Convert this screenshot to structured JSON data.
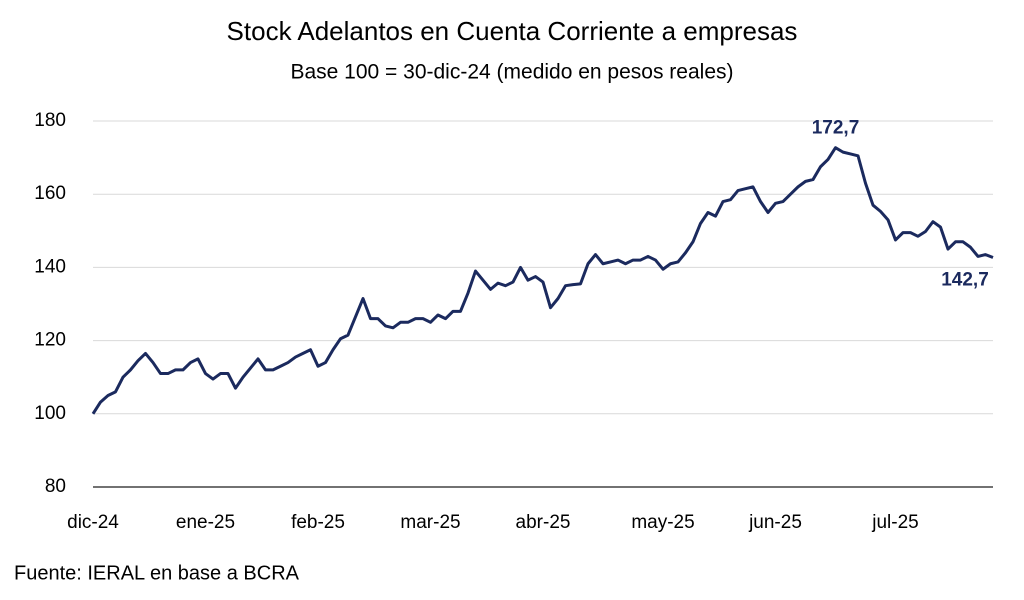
{
  "chart_data": {
    "type": "line",
    "title": "Stock Adelantos en Cuenta Corriente a empresas",
    "subtitle": "Base 100 = 30-dic-24 (medido  en pesos reales)",
    "source": "Fuente: IERAL en base a BCRA",
    "categories": [
      "dic-24",
      null,
      null,
      null,
      null,
      null,
      null,
      null,
      null,
      null,
      null,
      null,
      null,
      null,
      null,
      "ene-25",
      null,
      null,
      null,
      null,
      null,
      null,
      null,
      null,
      null,
      null,
      null,
      null,
      null,
      null,
      "feb-25",
      null,
      null,
      null,
      null,
      null,
      null,
      null,
      null,
      null,
      null,
      null,
      null,
      null,
      null,
      "mar-25",
      null,
      null,
      null,
      null,
      null,
      null,
      null,
      null,
      null,
      null,
      null,
      null,
      null,
      null,
      "abr-25",
      null,
      null,
      null,
      null,
      null,
      null,
      null,
      null,
      null,
      null,
      null,
      null,
      null,
      null,
      null,
      "may-25",
      null,
      null,
      null,
      null,
      null,
      null,
      null,
      null,
      null,
      null,
      null,
      null,
      null,
      null,
      "jun-25",
      null,
      null,
      null,
      null,
      null,
      null,
      null,
      null,
      null,
      null,
      null,
      null,
      null,
      null,
      null,
      "jul-25",
      null,
      null,
      null,
      null,
      null,
      null,
      null,
      null,
      null,
      null,
      null,
      null,
      null
    ],
    "series": [
      {
        "name": "Stock",
        "color": "#1b2a5e",
        "values": [
          100,
          103.2,
          105,
          106,
          110,
          112,
          114.5,
          116.5,
          114,
          111,
          111,
          112,
          112,
          114,
          115,
          111,
          109.5,
          111,
          111,
          107,
          110,
          112.5,
          115,
          112,
          112,
          113,
          114,
          115.5,
          116.5,
          117.5,
          113,
          114,
          117.5,
          120.5,
          121.5,
          126.5,
          131.5,
          126,
          126,
          124,
          123.5,
          125,
          125,
          126,
          126,
          125,
          127,
          126,
          128,
          128,
          133,
          139,
          136.5,
          134,
          135.7,
          135,
          136,
          140,
          136.5,
          137.5,
          136,
          129,
          131.5,
          135,
          135.3,
          135.5,
          141,
          143.5,
          141,
          141.5,
          142,
          141,
          142,
          142,
          143,
          142,
          139.5,
          141,
          141.5,
          144,
          147,
          152,
          155,
          154,
          158,
          158.5,
          161,
          161.5,
          162,
          158,
          155,
          157.5,
          158,
          160,
          162,
          163.5,
          164,
          167.5,
          169.5,
          172.7,
          171.5,
          171,
          170.5,
          163,
          157,
          155.3,
          153,
          147.5,
          149.5,
          149.5,
          148.5,
          149.8,
          152.5,
          151,
          145,
          147,
          147,
          145.5,
          143,
          143.5,
          142.7
        ],
        "value_labels": [
          null,
          null,
          null,
          null,
          null,
          null,
          null,
          null,
          null,
          null,
          null,
          null,
          null,
          null,
          null,
          null,
          null,
          null,
          null,
          null,
          null,
          null,
          null,
          null,
          null,
          null,
          null,
          null,
          null,
          null,
          null,
          null,
          null,
          null,
          null,
          null,
          null,
          null,
          null,
          null,
          null,
          null,
          null,
          null,
          null,
          null,
          null,
          null,
          null,
          null,
          null,
          null,
          null,
          null,
          null,
          null,
          null,
          null,
          null,
          null,
          null,
          null,
          null,
          null,
          null,
          null,
          null,
          null,
          null,
          null,
          null,
          null,
          null,
          null,
          null,
          null,
          null,
          null,
          null,
          null,
          null,
          null,
          null,
          null,
          null,
          null,
          null,
          null,
          null,
          null,
          null,
          null,
          null,
          null,
          null,
          null,
          null,
          null,
          null,
          "172,7",
          null,
          null,
          null,
          null,
          null,
          null,
          null,
          null,
          null,
          null,
          null,
          null,
          null,
          null,
          null,
          null,
          null,
          null,
          null,
          null,
          "142,7"
        ]
      }
    ],
    "ylim": [
      80,
      180
    ],
    "yticks": [
      80,
      100,
      120,
      140,
      160,
      180
    ],
    "grid": true
  }
}
